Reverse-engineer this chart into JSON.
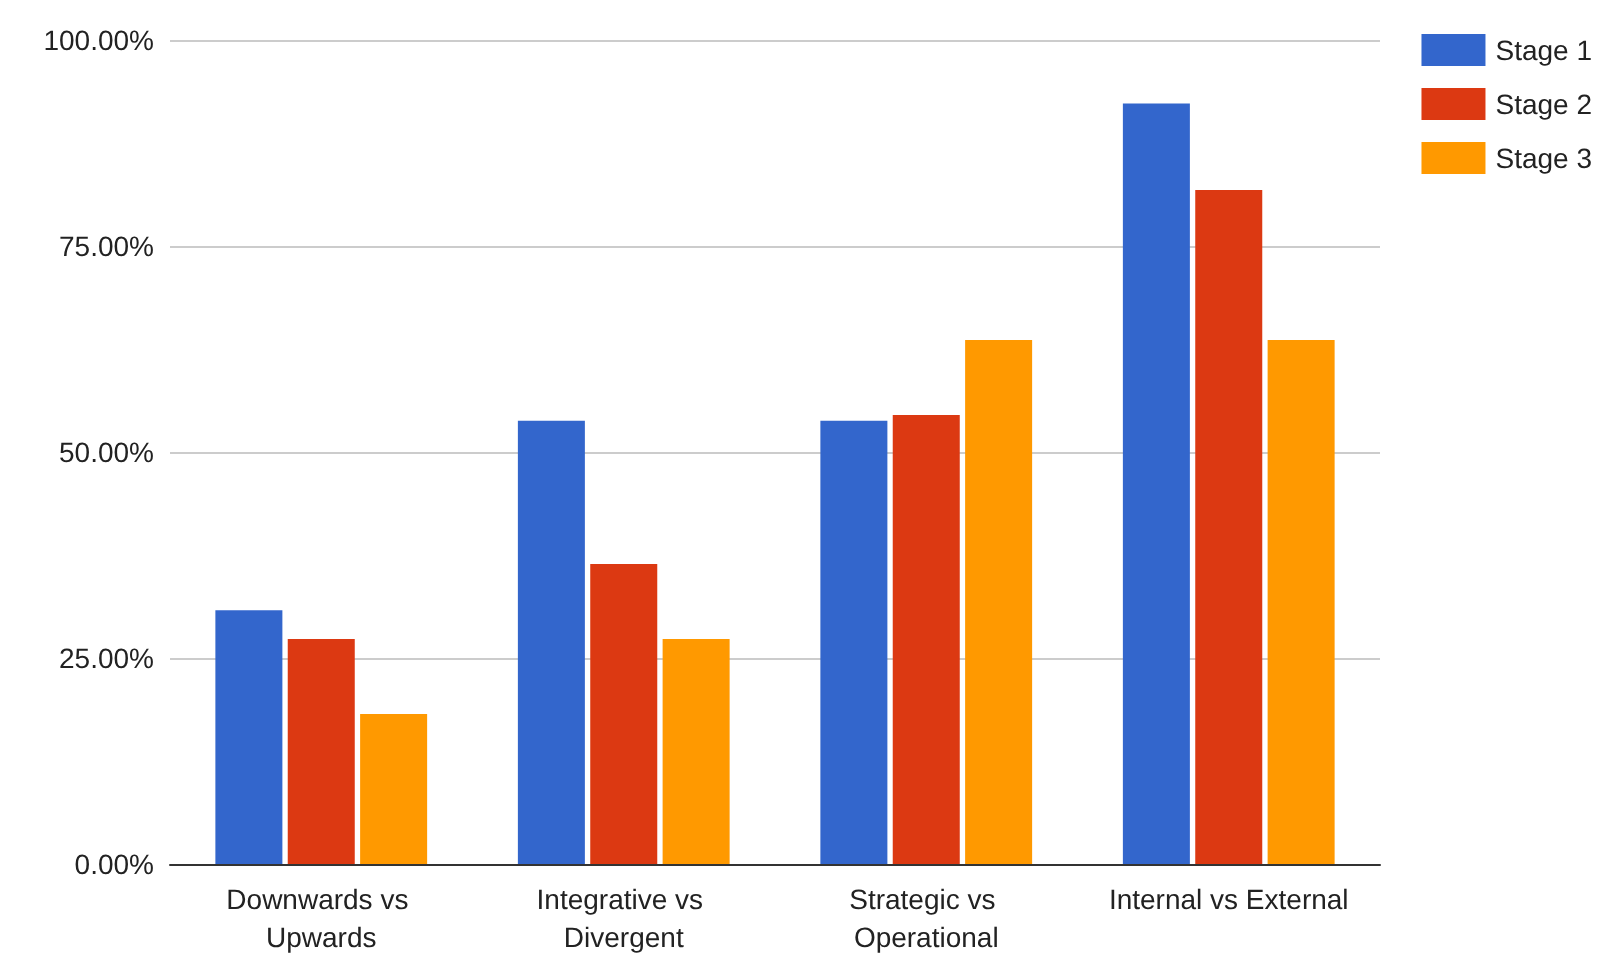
{
  "chart_data": {
    "type": "bar",
    "categories": [
      "Downwards vs Upwards",
      "Integrative vs Divergent",
      "Strategic vs Operational",
      "Internal vs External"
    ],
    "series": [
      {
        "name": "Stage 1",
        "color": "#3366cc",
        "values": [
          30.8,
          53.8,
          53.8,
          92.3
        ]
      },
      {
        "name": "Stage 2",
        "color": "#dc3912",
        "values": [
          27.3,
          36.4,
          54.5,
          81.8
        ]
      },
      {
        "name": "Stage 3",
        "color": "#ff9900",
        "values": [
          18.2,
          27.3,
          63.6,
          63.6
        ]
      }
    ],
    "ylim": [
      0,
      100
    ],
    "yticks": [
      {
        "value": 0,
        "label": "0.00%"
      },
      {
        "value": 25,
        "label": "25.00%"
      },
      {
        "value": 50,
        "label": "50.00%"
      },
      {
        "value": 75,
        "label": "75.00%"
      },
      {
        "value": 100,
        "label": "100.00%"
      }
    ],
    "grid": "y",
    "legend": "top right"
  }
}
